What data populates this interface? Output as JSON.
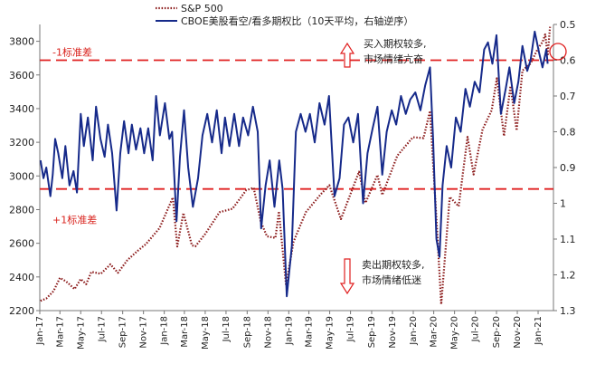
{
  "chart_data": {
    "type": "line",
    "title": "",
    "series": [
      {
        "name": "S&P 500",
        "axis": "left",
        "color": "#8b1a1a",
        "style": "dotted",
        "points": [
          [
            "2017-01-03",
            2258
          ],
          [
            "2017-01-20",
            2272
          ],
          [
            "2017-02-10",
            2315
          ],
          [
            "2017-03-01",
            2395
          ],
          [
            "2017-03-20",
            2372
          ],
          [
            "2017-04-13",
            2328
          ],
          [
            "2017-05-01",
            2388
          ],
          [
            "2017-05-17",
            2357
          ],
          [
            "2017-06-01",
            2430
          ],
          [
            "2017-06-29",
            2419
          ],
          [
            "2017-07-27",
            2475
          ],
          [
            "2017-08-18",
            2425
          ],
          [
            "2017-09-15",
            2500
          ],
          [
            "2017-10-15",
            2555
          ],
          [
            "2017-11-08",
            2595
          ],
          [
            "2017-12-18",
            2690
          ],
          [
            "2018-01-26",
            2872
          ],
          [
            "2018-02-08",
            2581
          ],
          [
            "2018-02-26",
            2780
          ],
          [
            "2018-03-23",
            2588
          ],
          [
            "2018-04-02",
            2582
          ],
          [
            "2018-05-01",
            2655
          ],
          [
            "2018-06-12",
            2785
          ],
          [
            "2018-07-20",
            2805
          ],
          [
            "2018-08-29",
            2915
          ],
          [
            "2018-09-20",
            2930
          ],
          [
            "2018-10-11",
            2728
          ],
          [
            "2018-10-29",
            2641
          ],
          [
            "2018-11-23",
            2632
          ],
          [
            "2018-12-03",
            2790
          ],
          [
            "2018-12-24",
            2351
          ],
          [
            "2019-01-15",
            2610
          ],
          [
            "2019-02-20",
            2785
          ],
          [
            "2019-04-05",
            2892
          ],
          [
            "2019-04-30",
            2945
          ],
          [
            "2019-06-03",
            2744
          ],
          [
            "2019-07-26",
            3025
          ],
          [
            "2019-08-14",
            2840
          ],
          [
            "2019-09-18",
            3006
          ],
          [
            "2019-10-02",
            2887
          ],
          [
            "2019-11-15",
            3120
          ],
          [
            "2019-12-31",
            3230
          ],
          [
            "2020-01-31",
            3225
          ],
          [
            "2020-02-19",
            3386
          ],
          [
            "2020-03-09",
            2746
          ],
          [
            "2020-03-23",
            2237
          ],
          [
            "2020-04-17",
            2875
          ],
          [
            "2020-05-13",
            2820
          ],
          [
            "2020-06-08",
            3232
          ],
          [
            "2020-06-26",
            3009
          ],
          [
            "2020-07-22",
            3276
          ],
          [
            "2020-08-18",
            3390
          ],
          [
            "2020-09-02",
            3580
          ],
          [
            "2020-09-23",
            3237
          ],
          [
            "2020-10-12",
            3534
          ],
          [
            "2020-10-30",
            3270
          ],
          [
            "2020-11-16",
            3626
          ],
          [
            "2020-12-10",
            3668
          ],
          [
            "2020-12-31",
            3756
          ],
          [
            "2021-01-14",
            3795
          ],
          [
            "2021-01-22",
            3841
          ],
          [
            "2021-01-29",
            3714
          ],
          [
            "2021-02-05",
            3886
          ]
        ]
      },
      {
        "name": "CBOE美股看空/看多期权比（10天平均，右轴逆序）",
        "axis": "right",
        "color": "#162a8a",
        "style": "solid",
        "points": [
          [
            "2017-01-03",
            0.88
          ],
          [
            "2017-01-12",
            0.93
          ],
          [
            "2017-01-20",
            0.9
          ],
          [
            "2017-02-01",
            0.98
          ],
          [
            "2017-02-08",
            0.92
          ],
          [
            "2017-02-15",
            0.82
          ],
          [
            "2017-02-24",
            0.86
          ],
          [
            "2017-03-08",
            0.93
          ],
          [
            "2017-03-17",
            0.84
          ],
          [
            "2017-03-29",
            0.95
          ],
          [
            "2017-04-10",
            0.91
          ],
          [
            "2017-04-20",
            0.97
          ],
          [
            "2017-05-01",
            0.75
          ],
          [
            "2017-05-10",
            0.84
          ],
          [
            "2017-05-22",
            0.76
          ],
          [
            "2017-06-05",
            0.88
          ],
          [
            "2017-06-15",
            0.73
          ],
          [
            "2017-06-28",
            0.82
          ],
          [
            "2017-07-10",
            0.87
          ],
          [
            "2017-07-20",
            0.78
          ],
          [
            "2017-08-01",
            0.86
          ],
          [
            "2017-08-14",
            1.02
          ],
          [
            "2017-08-25",
            0.86
          ],
          [
            "2017-09-05",
            0.77
          ],
          [
            "2017-09-18",
            0.86
          ],
          [
            "2017-09-28",
            0.78
          ],
          [
            "2017-10-10",
            0.85
          ],
          [
            "2017-10-23",
            0.79
          ],
          [
            "2017-11-03",
            0.86
          ],
          [
            "2017-11-15",
            0.79
          ],
          [
            "2017-11-28",
            0.88
          ],
          [
            "2017-12-08",
            0.7
          ],
          [
            "2017-12-19",
            0.81
          ],
          [
            "2018-01-03",
            0.72
          ],
          [
            "2018-01-16",
            0.82
          ],
          [
            "2018-01-24",
            0.8
          ],
          [
            "2018-02-06",
            1.05
          ],
          [
            "2018-02-16",
            0.87
          ],
          [
            "2018-02-28",
            0.74
          ],
          [
            "2018-03-12",
            0.9
          ],
          [
            "2018-03-26",
            1.01
          ],
          [
            "2018-04-10",
            0.93
          ],
          [
            "2018-04-23",
            0.81
          ],
          [
            "2018-05-07",
            0.75
          ],
          [
            "2018-05-21",
            0.83
          ],
          [
            "2018-06-04",
            0.74
          ],
          [
            "2018-06-18",
            0.86
          ],
          [
            "2018-06-28",
            0.76
          ],
          [
            "2018-07-11",
            0.84
          ],
          [
            "2018-07-25",
            0.75
          ],
          [
            "2018-08-08",
            0.84
          ],
          [
            "2018-08-20",
            0.76
          ],
          [
            "2018-09-04",
            0.81
          ],
          [
            "2018-09-18",
            0.73
          ],
          [
            "2018-10-02",
            0.8
          ],
          [
            "2018-10-12",
            1.07
          ],
          [
            "2018-10-25",
            0.95
          ],
          [
            "2018-11-06",
            0.88
          ],
          [
            "2018-11-20",
            1.01
          ],
          [
            "2018-12-04",
            0.88
          ],
          [
            "2018-12-14",
            0.96
          ],
          [
            "2018-12-26",
            1.26
          ],
          [
            "2019-01-10",
            1.12
          ],
          [
            "2019-01-22",
            0.8
          ],
          [
            "2019-02-05",
            0.75
          ],
          [
            "2019-02-19",
            0.8
          ],
          [
            "2019-03-04",
            0.75
          ],
          [
            "2019-03-18",
            0.83
          ],
          [
            "2019-04-01",
            0.72
          ],
          [
            "2019-04-16",
            0.78
          ],
          [
            "2019-04-29",
            0.7
          ],
          [
            "2019-05-15",
            0.98
          ],
          [
            "2019-05-30",
            0.93
          ],
          [
            "2019-06-12",
            0.78
          ],
          [
            "2019-06-25",
            0.76
          ],
          [
            "2019-07-09",
            0.83
          ],
          [
            "2019-07-23",
            0.75
          ],
          [
            "2019-08-07",
            1.0
          ],
          [
            "2019-08-20",
            0.86
          ],
          [
            "2019-09-04",
            0.79
          ],
          [
            "2019-09-18",
            0.73
          ],
          [
            "2019-10-02",
            0.92
          ],
          [
            "2019-10-15",
            0.8
          ],
          [
            "2019-10-30",
            0.74
          ],
          [
            "2019-11-12",
            0.78
          ],
          [
            "2019-11-26",
            0.7
          ],
          [
            "2019-12-10",
            0.75
          ],
          [
            "2019-12-23",
            0.71
          ],
          [
            "2020-01-07",
            0.69
          ],
          [
            "2020-01-22",
            0.74
          ],
          [
            "2020-02-05",
            0.67
          ],
          [
            "2020-02-19",
            0.62
          ],
          [
            "2020-02-28",
            0.82
          ],
          [
            "2020-03-09",
            1.1
          ],
          [
            "2020-03-18",
            1.15
          ],
          [
            "2020-03-27",
            0.95
          ],
          [
            "2020-04-08",
            0.84
          ],
          [
            "2020-04-21",
            0.9
          ],
          [
            "2020-05-05",
            0.76
          ],
          [
            "2020-05-19",
            0.8
          ],
          [
            "2020-06-02",
            0.68
          ],
          [
            "2020-06-15",
            0.73
          ],
          [
            "2020-06-29",
            0.66
          ],
          [
            "2020-07-13",
            0.69
          ],
          [
            "2020-07-27",
            0.57
          ],
          [
            "2020-08-07",
            0.55
          ],
          [
            "2020-08-20",
            0.61
          ],
          [
            "2020-09-01",
            0.53
          ],
          [
            "2020-09-14",
            0.75
          ],
          [
            "2020-09-28",
            0.68
          ],
          [
            "2020-10-09",
            0.62
          ],
          [
            "2020-10-23",
            0.72
          ],
          [
            "2020-11-04",
            0.66
          ],
          [
            "2020-11-16",
            0.56
          ],
          [
            "2020-11-30",
            0.63
          ],
          [
            "2020-12-10",
            0.6
          ],
          [
            "2020-12-22",
            0.52
          ],
          [
            "2021-01-04",
            0.58
          ],
          [
            "2021-01-14",
            0.62
          ],
          [
            "2021-01-25",
            0.57
          ],
          [
            "2021-01-29",
            0.61
          ]
        ]
      }
    ],
    "left_axis": {
      "ylim": [
        2200,
        3900
      ],
      "ticks": [
        "2200",
        "2400",
        "2600",
        "2800",
        "3000",
        "3200",
        "3400",
        "3600",
        "3800"
      ]
    },
    "right_axis": {
      "ylim": [
        0.5,
        1.3
      ],
      "inverted": true,
      "ticks": [
        "0.5",
        "0.6",
        "0.7",
        "0.8",
        "0.9",
        "1",
        "1.1",
        "1.2",
        "1.3"
      ]
    },
    "x_axis": {
      "range": [
        "2017-01-01",
        "2021-02-15"
      ],
      "ticks": [
        [
          "2017-01-01",
          "Jan-17"
        ],
        [
          "2017-03-01",
          "Mar-17"
        ],
        [
          "2017-05-01",
          "May-17"
        ],
        [
          "2017-07-01",
          "Jul-17"
        ],
        [
          "2017-09-01",
          "Sep-17"
        ],
        [
          "2017-11-01",
          "Nov-17"
        ],
        [
          "2018-01-01",
          "Jan-18"
        ],
        [
          "2018-03-01",
          "Mar-18"
        ],
        [
          "2018-05-01",
          "May-18"
        ],
        [
          "2018-07-01",
          "Jul-18"
        ],
        [
          "2018-09-01",
          "Sep-18"
        ],
        [
          "2018-11-01",
          "Nov-18"
        ],
        [
          "2019-01-01",
          "Jan-19"
        ],
        [
          "2019-03-01",
          "Mar-19"
        ],
        [
          "2019-05-01",
          "May-19"
        ],
        [
          "2019-07-01",
          "Jul-19"
        ],
        [
          "2019-09-01",
          "Sep-19"
        ],
        [
          "2019-11-01",
          "Nov-19"
        ],
        [
          "2020-01-01",
          "Jan-20"
        ],
        [
          "2020-03-01",
          "Mar-20"
        ],
        [
          "2020-05-01",
          "May-20"
        ],
        [
          "2020-07-01",
          "Jul-20"
        ],
        [
          "2020-09-01",
          "Sep-20"
        ],
        [
          "2020-11-01",
          "Nov-20"
        ],
        [
          "2021-01-01",
          "Jan-21"
        ]
      ]
    },
    "reference_lines": [
      {
        "axis": "right",
        "value": 0.6,
        "label": "-1标准差",
        "color": "#e02020"
      },
      {
        "axis": "right",
        "value": 0.96,
        "label": "+1标准差",
        "color": "#e02020"
      }
    ],
    "annotations": [
      {
        "lines": [
          "买入期权较多,",
          "市场情绪亢奋"
        ],
        "arrow": "up"
      },
      {
        "lines": [
          "卖出期权较多,",
          "市场情绪低迷"
        ],
        "arrow": "down"
      }
    ],
    "legend_placement": "top-left",
    "grid": false
  }
}
